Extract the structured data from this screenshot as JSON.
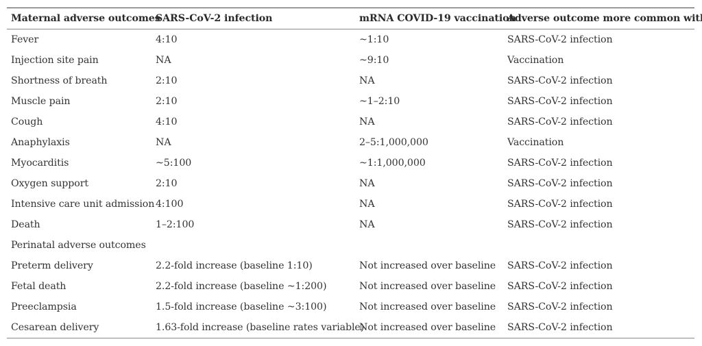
{
  "table": {
    "headers": [
      "Maternal adverse outcomes",
      "SARS-CoV-2 infection",
      "mRNA COVID-19 vaccination",
      "Adverse outcome more common with"
    ],
    "rows": [
      [
        "Fever",
        "4:10",
        "~1:10",
        "SARS-CoV-2 infection"
      ],
      [
        "Injection site pain",
        "NA",
        "~9:10",
        "Vaccination"
      ],
      [
        "Shortness of breath",
        "2:10",
        "NA",
        "SARS-CoV-2 infection"
      ],
      [
        "Muscle pain",
        "2:10",
        "~1–2:10",
        "SARS-CoV-2 infection"
      ],
      [
        "Cough",
        "4:10",
        "NA",
        "SARS-CoV-2 infection"
      ],
      [
        "Anaphylaxis",
        "NA",
        "2–5:1,000,000",
        "Vaccination"
      ],
      [
        "Myocarditis",
        "~5:100",
        "~1:1,000,000",
        "SARS-CoV-2 infection"
      ],
      [
        "Oxygen support",
        "2:10",
        "NA",
        "SARS-CoV-2 infection"
      ],
      [
        "Intensive care unit admission",
        "4:100",
        "NA",
        "SARS-CoV-2 infection"
      ],
      [
        "Death",
        "1–2:100",
        "NA",
        "SARS-CoV-2 infection"
      ],
      [
        "Perinatal adverse outcomes",
        "",
        "",
        ""
      ],
      [
        "Preterm delivery",
        "2.2-fold increase (baseline 1:10)",
        "Not increased over baseline",
        "SARS-CoV-2 infection"
      ],
      [
        "Fetal death",
        "2.2-fold increase (baseline ~1:200)",
        "Not increased over baseline",
        "SARS-CoV-2 infection"
      ],
      [
        "Preeclampsia",
        "1.5-fold increase (baseline ~3:100)",
        "Not increased over baseline",
        "SARS-CoV-2 infection"
      ],
      [
        "Cesarean delivery",
        "1.63-fold increase (baseline rates variable)",
        "Not increased over baseline",
        "SARS-CoV-2 infection"
      ]
    ]
  }
}
